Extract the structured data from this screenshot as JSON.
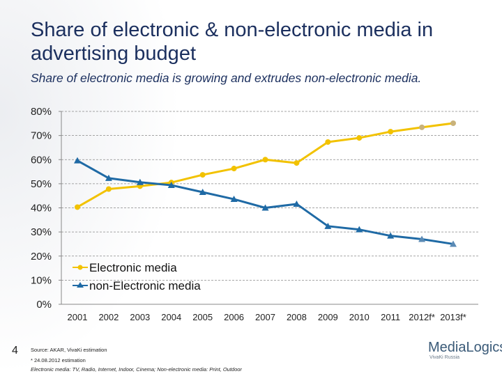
{
  "title": "Share of electronic & non-electronic media in advertising budget",
  "subtitle": "Share of electronic media is growing and extrudes non-electronic media.",
  "page_number": "4",
  "footnotes": {
    "source": "Source: AKAR, VivaKi estimation",
    "estimation": "* 24.08.2012 estimation",
    "definition": "Electronic media: TV, Radio, Internet, Indoor, Cinema; Non-electronic media: Print, Outdoor"
  },
  "logo": {
    "name": "MediaLogics",
    "sub": "VivaKi Russia"
  },
  "chart_data": {
    "type": "line",
    "categories": [
      "2001",
      "2002",
      "2003",
      "2004",
      "2005",
      "2006",
      "2007",
      "2008",
      "2009",
      "2010",
      "2011",
      "2012f*",
      "2013f*"
    ],
    "ylim": [
      0,
      80
    ],
    "yticks": [
      "0%",
      "10%",
      "20%",
      "30%",
      "40%",
      "50%",
      "60%",
      "70%",
      "80%"
    ],
    "grid": true,
    "legend": "left-bottom",
    "series": [
      {
        "name": "Electronic media",
        "color": "#f2c200",
        "marker": "circle",
        "values": [
          40.3,
          47.8,
          49,
          50.5,
          53.7,
          56.3,
          60,
          58.6,
          67.3,
          69,
          71.6,
          73.4,
          75.1
        ]
      },
      {
        "name": "non-Electronic media",
        "color": "#1f6aa5",
        "marker": "triangle",
        "values": [
          59.6,
          52.3,
          50.6,
          49.4,
          46.5,
          43.6,
          40,
          41.6,
          32.4,
          31,
          28.4,
          27,
          25
        ]
      }
    ]
  }
}
